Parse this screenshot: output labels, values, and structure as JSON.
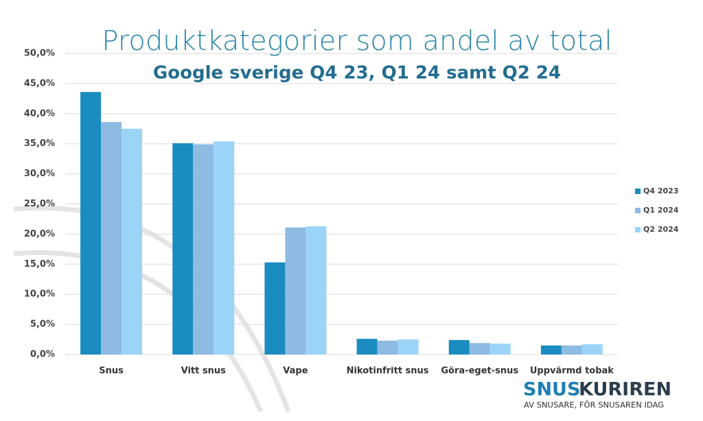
{
  "chart_data": {
    "type": "bar",
    "title": "Produktkategorier som andel av total",
    "subtitle": "Google sverige Q4 23, Q1 24 samt Q2 24",
    "categories": [
      "Snus",
      "Vitt snus",
      "Vape",
      "Nikotinfritt snus",
      "Göra-eget-snus",
      "Uppvärmd tobak"
    ],
    "series": [
      {
        "name": "Q4 2023",
        "color": "#1a8cc0",
        "values": [
          43.6,
          35.1,
          15.3,
          2.6,
          2.4,
          1.5
        ]
      },
      {
        "name": "Q1 2024",
        "color": "#8dbbe2",
        "values": [
          38.6,
          34.9,
          21.1,
          2.3,
          1.9,
          1.5
        ]
      },
      {
        "name": "Q2 2024",
        "color": "#9cd4f8",
        "values": [
          37.5,
          35.4,
          21.3,
          2.5,
          1.8,
          1.7
        ]
      }
    ],
    "ylim": [
      0,
      50
    ],
    "yticks": [
      {
        "value": 0,
        "label": "0,0%"
      },
      {
        "value": 5,
        "label": "5,0%"
      },
      {
        "value": 10,
        "label": "10,0%"
      },
      {
        "value": 15,
        "label": "15,0%"
      },
      {
        "value": 20,
        "label": "20,0%"
      },
      {
        "value": 25,
        "label": "25,0%"
      },
      {
        "value": 30,
        "label": "30,0%"
      },
      {
        "value": 35,
        "label": "35,0%"
      },
      {
        "value": 40,
        "label": "40,0%"
      },
      {
        "value": 45,
        "label": "45,0%"
      },
      {
        "value": 50,
        "label": "50,0%"
      }
    ],
    "grid": true,
    "legend": "right"
  },
  "logo": {
    "part1": "SNUS",
    "part2": "KURIREN",
    "tagline": "AV SNUSARE, FÖR SNUSAREN IDAG"
  }
}
